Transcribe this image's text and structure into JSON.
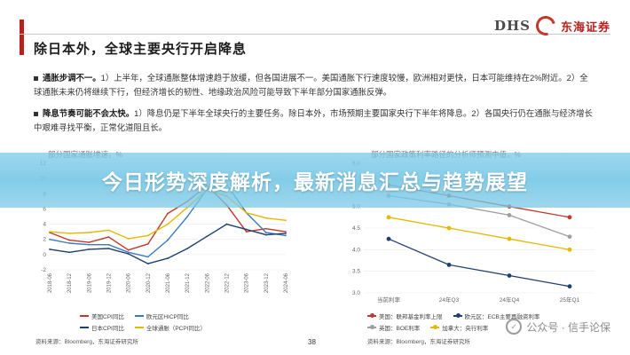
{
  "slide": {
    "title": "除日本外，全球主要央行开启降息",
    "logo": {
      "brand": "DHS",
      "name": "东海证券"
    },
    "bullets": [
      {
        "head": "通胀步调不一。",
        "body": "1）上半年，全球通胀整体增速趋于放缓，但各国进展不一。美国通胀下行速度较慢，欧洲相对更快，日本可能维持在2%附近。2）全球通胀未来仍将继续下行，但经济增长的韧性、地缘政治风险可能导致下半年部分国家通胀反弹。"
      },
      {
        "head": "降息节奏可能不会太快。",
        "body": "1）降息仍是下半年全球央行的主要任务。除日本外，市场预期主要国家央行下半年将降息。2）各国央行仍在通胀与经济增长中艰难寻找平衡，正常化道阻且长。"
      }
    ],
    "page_number": "38",
    "source_left": "资料来源：Bloomberg，东海证券研究所",
    "source_right": "资料来源：Bloomberg，东海证券研究所"
  },
  "overlay": {
    "headline": "今日形势深度解析，最新消息汇总与趋势展望"
  },
  "watermark": {
    "text": "公众号 · 信手论保",
    "icon": "wechat-icon"
  },
  "colors": {
    "accent": "#b5231f",
    "overlay": "#78c8e6"
  },
  "chart_data": [
    {
      "type": "line",
      "title": "部分国家通胀增速，%",
      "x": [
        "2018-06",
        "2018-12",
        "2019-06",
        "2019-12",
        "2020-06",
        "2020-12",
        "2021-06",
        "2021-12",
        "2022-06",
        "2022-12",
        "2023-06",
        "2023-12",
        "2024-06"
      ],
      "ylim": [
        -2,
        12
      ],
      "series": [
        {
          "name": "美国CPI同比",
          "color": "#c0392b",
          "values": [
            2.9,
            1.9,
            1.6,
            2.3,
            0.6,
            1.4,
            5.4,
            7.0,
            9.1,
            6.5,
            3.0,
            3.4,
            3.0
          ]
        },
        {
          "name": "欧元区HICP同比",
          "color": "#3a7abf",
          "values": [
            2.0,
            1.5,
            1.3,
            1.3,
            0.3,
            -0.3,
            1.9,
            5.0,
            8.6,
            9.2,
            5.5,
            2.9,
            2.5
          ]
        },
        {
          "name": "日本CPI同比",
          "color": "#1f3f6e",
          "values": [
            0.7,
            0.3,
            0.7,
            0.8,
            0.1,
            -1.2,
            -0.5,
            0.8,
            2.4,
            4.0,
            3.3,
            2.6,
            2.8
          ]
        },
        {
          "name": "全球通胀（PCPI同比）",
          "color": "#e6b800",
          "values": [
            3.0,
            2.8,
            2.9,
            3.2,
            2.1,
            2.5,
            4.0,
            6.2,
            8.5,
            7.7,
            5.5,
            4.8,
            4.5
          ]
        }
      ],
      "legend": [
        "美国CPI同比",
        "欧元区HICP同比",
        "日本CPI同比",
        "全球通胀（PCPI同比）"
      ]
    },
    {
      "type": "line",
      "title": "部分国家政策利率路径的分析师预测中值，%",
      "categories": [
        "当前利率",
        "24年Q3",
        "24年Q4",
        "25年Q1"
      ],
      "ylim": [
        3.0,
        6.0
      ],
      "yticks": [
        "3.0",
        "3.5",
        "4.0",
        "4.5",
        "5.0",
        "5.5",
        "6.0"
      ],
      "series": [
        {
          "name": "美国：联邦基金利率上限",
          "color": "#c0392b",
          "values": [
            5.5,
            5.25,
            5.0,
            4.75
          ]
        },
        {
          "name": "欧元区：ECB主要再融资利率",
          "color": "#1f3f6e",
          "values": [
            4.25,
            3.65,
            3.4,
            3.15
          ]
        },
        {
          "name": "英国：BOE利率",
          "color": "#9e9e9e",
          "values": [
            5.25,
            5.05,
            4.8,
            4.3
          ]
        },
        {
          "name": "加拿大：央行利率",
          "color": "#e6b800",
          "values": [
            4.75,
            4.5,
            4.25,
            4.0
          ]
        }
      ],
      "legend": [
        "美国：联邦基金利率上限",
        "欧元区：ECB主要再融资利率",
        "英国：BOE利率",
        "加拿大：央行利率"
      ]
    }
  ]
}
